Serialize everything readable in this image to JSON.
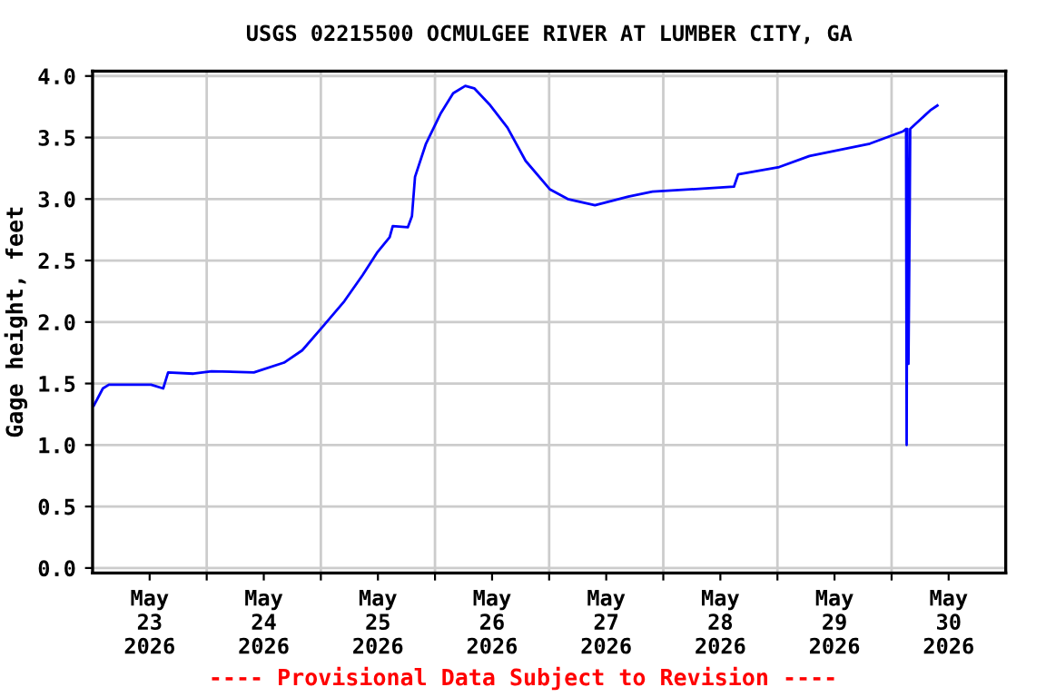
{
  "chart_data": {
    "type": "line",
    "title": "USGS 02215500 OCMULGEE RIVER AT LUMBER CITY, GA",
    "ylabel": "Gage height, feet",
    "annotations": [
      "---- Provisional Data Subject to Revision ----"
    ],
    "series": [
      {
        "color": "#0000ff",
        "x": [
          "2026-05-23T00:16",
          "2026-05-23T02:10",
          "2026-05-23T03:26",
          "2026-05-23T12:18",
          "2026-05-23T14:51",
          "2026-05-23T15:53",
          "2026-05-23T21:13",
          "2026-05-24T01:01",
          "2026-05-24T09:55",
          "2026-05-24T16:16",
          "2026-05-24T20:05",
          "2026-05-25T00:07",
          "2026-05-25T04:57",
          "2026-05-25T08:46",
          "2026-05-25T11:56",
          "2026-05-25T14:28",
          "2026-05-25T15:07",
          "2026-05-25T18:17",
          "2026-05-25T19:09",
          "2026-05-25T19:48",
          "2026-05-25T22:06",
          "2026-05-26T01:15",
          "2026-05-26T03:49",
          "2026-05-26T06:22",
          "2026-05-26T08:15",
          "2026-05-26T11:26",
          "2026-05-26T15:14",
          "2026-05-26T19:03",
          "2026-05-27T00:07",
          "2026-05-27T03:55",
          "2026-05-27T09:38",
          "2026-05-27T16:39",
          "2026-05-27T21:43",
          "2026-05-28T14:51",
          "2026-05-28T15:44",
          "2026-05-29T00:23",
          "2026-05-29T06:45",
          "2026-05-29T19:26",
          "2026-05-30T02:24",
          "2026-05-30T03:03",
          "2026-05-30T03:10",
          "2026-05-30T03:19",
          "2026-05-30T03:33",
          "2026-05-30T03:49",
          "2026-05-30T03:55",
          "2026-05-30T08:07",
          "2026-05-30T09:38"
        ],
        "values": [
          1.32,
          1.46,
          1.49,
          1.49,
          1.46,
          1.59,
          1.58,
          1.6,
          1.59,
          1.67,
          1.77,
          1.95,
          2.17,
          2.38,
          2.57,
          2.69,
          2.78,
          2.77,
          2.86,
          3.18,
          3.45,
          3.7,
          3.86,
          3.92,
          3.9,
          3.77,
          3.58,
          3.31,
          3.08,
          3.0,
          2.95,
          3.02,
          3.06,
          3.1,
          3.2,
          3.26,
          3.35,
          3.45,
          3.55,
          3.57,
          1.0,
          3.57,
          1.66,
          2.94,
          3.57,
          3.72,
          3.76
        ]
      }
    ],
    "xlim": [
      "2026-05-23T00:00",
      "2026-05-31T00:00"
    ],
    "xticks": [
      {
        "value": "2026-05-23T12:00",
        "label": "May\n23\n2026"
      },
      {
        "value": "2026-05-24T00:00",
        "label": null
      },
      {
        "value": "2026-05-24T12:00",
        "label": "May\n24\n2026"
      },
      {
        "value": "2026-05-25T00:00",
        "label": null
      },
      {
        "value": "2026-05-25T12:00",
        "label": "May\n25\n2026"
      },
      {
        "value": "2026-05-26T00:00",
        "label": null
      },
      {
        "value": "2026-05-26T12:00",
        "label": "May\n26\n2026"
      },
      {
        "value": "2026-05-27T00:00",
        "label": null
      },
      {
        "value": "2026-05-27T12:00",
        "label": "May\n27\n2026"
      },
      {
        "value": "2026-05-28T00:00",
        "label": null
      },
      {
        "value": "2026-05-28T12:00",
        "label": "May\n28\n2026"
      },
      {
        "value": "2026-05-29T00:00",
        "label": null
      },
      {
        "value": "2026-05-29T12:00",
        "label": "May\n29\n2026"
      },
      {
        "value": "2026-05-30T00:00",
        "label": null
      },
      {
        "value": "2026-05-30T12:00",
        "label": "May\n30\n2026"
      }
    ],
    "ylim": [
      -0.04,
      4.04
    ],
    "yticks": [
      {
        "value": 0,
        "label": "0.0"
      },
      0.5,
      {
        "value": 1,
        "label": "1.0"
      },
      1.5,
      {
        "value": 2,
        "label": "2.0"
      },
      2.5,
      {
        "value": 3,
        "label": "3.0"
      },
      3.5,
      {
        "value": 4,
        "label": "4.0"
      }
    ],
    "grid": true,
    "line_style": "solid"
  }
}
